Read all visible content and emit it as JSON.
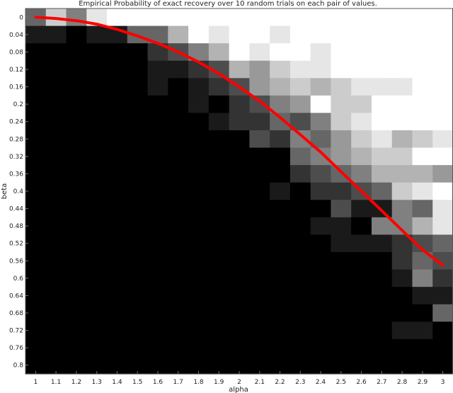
{
  "chart_data": {
    "type": "heatmap",
    "title": "Empirical Probability of exact recovery over 10 random trials on each pair of values.",
    "xlabel": "alpha",
    "ylabel": "beta",
    "x_ticks": [
      "1",
      "1.1",
      "1.2",
      "1.3",
      "1.4",
      "1.5",
      "1.6",
      "1.7",
      "1.8",
      "1.9",
      "2",
      "2.1",
      "2.2",
      "2.3",
      "2.4",
      "2.5",
      "2.6",
      "2.7",
      "2.8",
      "2.9",
      "3"
    ],
    "y_ticks": [
      "0",
      "0.04",
      "0.08",
      "0.12",
      "0.16",
      "0.2",
      "0.24",
      "0.28",
      "0.32",
      "0.36",
      "0.4",
      "0.44",
      "0.48",
      "0.52",
      "0.56",
      "0.6",
      "0.64",
      "0.68",
      "0.72",
      "0.76",
      "0.8"
    ],
    "xlim": [
      0.95,
      3.05
    ],
    "ylim": [
      -0.02,
      0.82
    ],
    "colormap": "gray",
    "value_range": [
      0,
      1
    ],
    "grid": false,
    "line_color": "#ff0000",
    "curve": {
      "x": [
        1.0,
        1.1,
        1.2,
        1.3,
        1.4,
        1.5,
        1.6,
        1.7,
        1.8,
        1.9,
        2.0,
        2.1,
        2.2,
        2.3,
        2.4,
        2.5,
        2.6,
        2.7,
        2.8,
        2.9,
        3.0
      ],
      "y": [
        0.0,
        0.003,
        0.008,
        0.016,
        0.028,
        0.043,
        0.06,
        0.08,
        0.103,
        0.13,
        0.16,
        0.193,
        0.23,
        0.27,
        0.31,
        0.355,
        0.4,
        0.445,
        0.49,
        0.535,
        0.57
      ]
    },
    "values": [
      [
        0.4,
        0.8,
        0.5,
        0.9,
        1,
        1,
        1,
        1,
        1,
        1,
        1,
        1,
        1,
        1,
        1,
        1,
        1,
        1,
        1,
        1,
        1
      ],
      [
        0.1,
        0.1,
        0,
        0.1,
        0.1,
        0.4,
        0.4,
        0.7,
        1,
        0.9,
        1,
        1,
        0.9,
        1,
        1,
        1,
        1,
        1,
        1,
        1,
        1
      ],
      [
        0,
        0,
        0,
        0,
        0,
        0,
        0.2,
        0.3,
        0.5,
        0.7,
        1,
        0.9,
        1,
        1,
        0.9,
        1,
        1,
        1,
        1,
        1,
        1
      ],
      [
        0,
        0,
        0,
        0,
        0,
        0,
        0.1,
        0.1,
        0.2,
        0.3,
        0.7,
        0.6,
        0.8,
        0.9,
        0.9,
        1,
        1,
        1,
        1,
        1,
        1
      ],
      [
        0,
        0,
        0,
        0,
        0,
        0,
        0.1,
        0,
        0.1,
        0.2,
        0.3,
        0.6,
        0.7,
        0.8,
        0.7,
        0.8,
        0.9,
        0.9,
        0.9,
        1,
        1
      ],
      [
        0,
        0,
        0,
        0,
        0,
        0,
        0,
        0,
        0.1,
        0,
        0.2,
        0.3,
        0.5,
        0.6,
        1,
        0.8,
        0.8,
        1,
        1,
        1,
        1
      ],
      [
        0,
        0,
        0,
        0,
        0,
        0,
        0,
        0,
        0,
        0.1,
        0.2,
        0.2,
        0.4,
        0.3,
        0.5,
        0.8,
        0.9,
        1,
        1,
        1,
        1
      ],
      [
        0,
        0,
        0,
        0,
        0,
        0,
        0,
        0,
        0,
        0,
        0,
        0.3,
        0.2,
        0.5,
        0.4,
        0.6,
        0.8,
        0.9,
        0.7,
        0.8,
        0.9
      ],
      [
        0,
        0,
        0,
        0,
        0,
        0,
        0,
        0,
        0,
        0,
        0,
        0,
        0,
        0.4,
        0.5,
        0.6,
        0.7,
        0.8,
        0.8,
        1,
        1
      ],
      [
        0,
        0,
        0,
        0,
        0,
        0,
        0,
        0,
        0,
        0,
        0,
        0,
        0,
        0.2,
        0.3,
        0.4,
        0.5,
        0.7,
        0.7,
        0.7,
        0.6
      ],
      [
        0,
        0,
        0,
        0,
        0,
        0,
        0,
        0,
        0,
        0,
        0,
        0,
        0.1,
        0,
        0.2,
        0.2,
        0.3,
        0.4,
        0.8,
        0.9,
        1
      ],
      [
        0,
        0,
        0,
        0,
        0,
        0,
        0,
        0,
        0,
        0,
        0,
        0,
        0,
        0,
        0,
        0.3,
        0.1,
        0.1,
        0.5,
        0.4,
        0.9
      ],
      [
        0,
        0,
        0,
        0,
        0,
        0,
        0,
        0,
        0,
        0,
        0,
        0,
        0,
        0,
        0.1,
        0.1,
        0,
        0.5,
        0.5,
        0.7,
        0.9
      ],
      [
        0,
        0,
        0,
        0,
        0,
        0,
        0,
        0,
        0,
        0,
        0,
        0,
        0,
        0,
        0,
        0.1,
        0.1,
        0.1,
        0.2,
        0.3,
        0.4
      ],
      [
        0,
        0,
        0,
        0,
        0,
        0,
        0,
        0,
        0,
        0,
        0,
        0,
        0,
        0,
        0,
        0,
        0,
        0,
        0.2,
        0.4,
        0.3
      ],
      [
        0,
        0,
        0,
        0,
        0,
        0,
        0,
        0,
        0,
        0,
        0,
        0,
        0,
        0,
        0,
        0,
        0,
        0,
        0.1,
        0.5,
        0.2
      ],
      [
        0,
        0,
        0,
        0,
        0,
        0,
        0,
        0,
        0,
        0,
        0,
        0,
        0,
        0,
        0,
        0,
        0,
        0,
        0,
        0.1,
        0.1
      ],
      [
        0,
        0,
        0,
        0,
        0,
        0,
        0,
        0,
        0,
        0,
        0,
        0,
        0,
        0,
        0,
        0,
        0,
        0,
        0,
        0,
        0.4
      ],
      [
        0,
        0,
        0,
        0,
        0,
        0,
        0,
        0,
        0,
        0,
        0,
        0,
        0,
        0,
        0,
        0,
        0,
        0,
        0.1,
        0.1,
        0
      ],
      [
        0,
        0,
        0,
        0,
        0,
        0,
        0,
        0,
        0,
        0,
        0,
        0,
        0,
        0,
        0,
        0,
        0,
        0,
        0,
        0,
        0
      ],
      [
        0,
        0,
        0,
        0,
        0,
        0,
        0,
        0,
        0,
        0,
        0,
        0,
        0,
        0,
        0,
        0,
        0,
        0,
        0,
        0,
        0
      ]
    ]
  }
}
